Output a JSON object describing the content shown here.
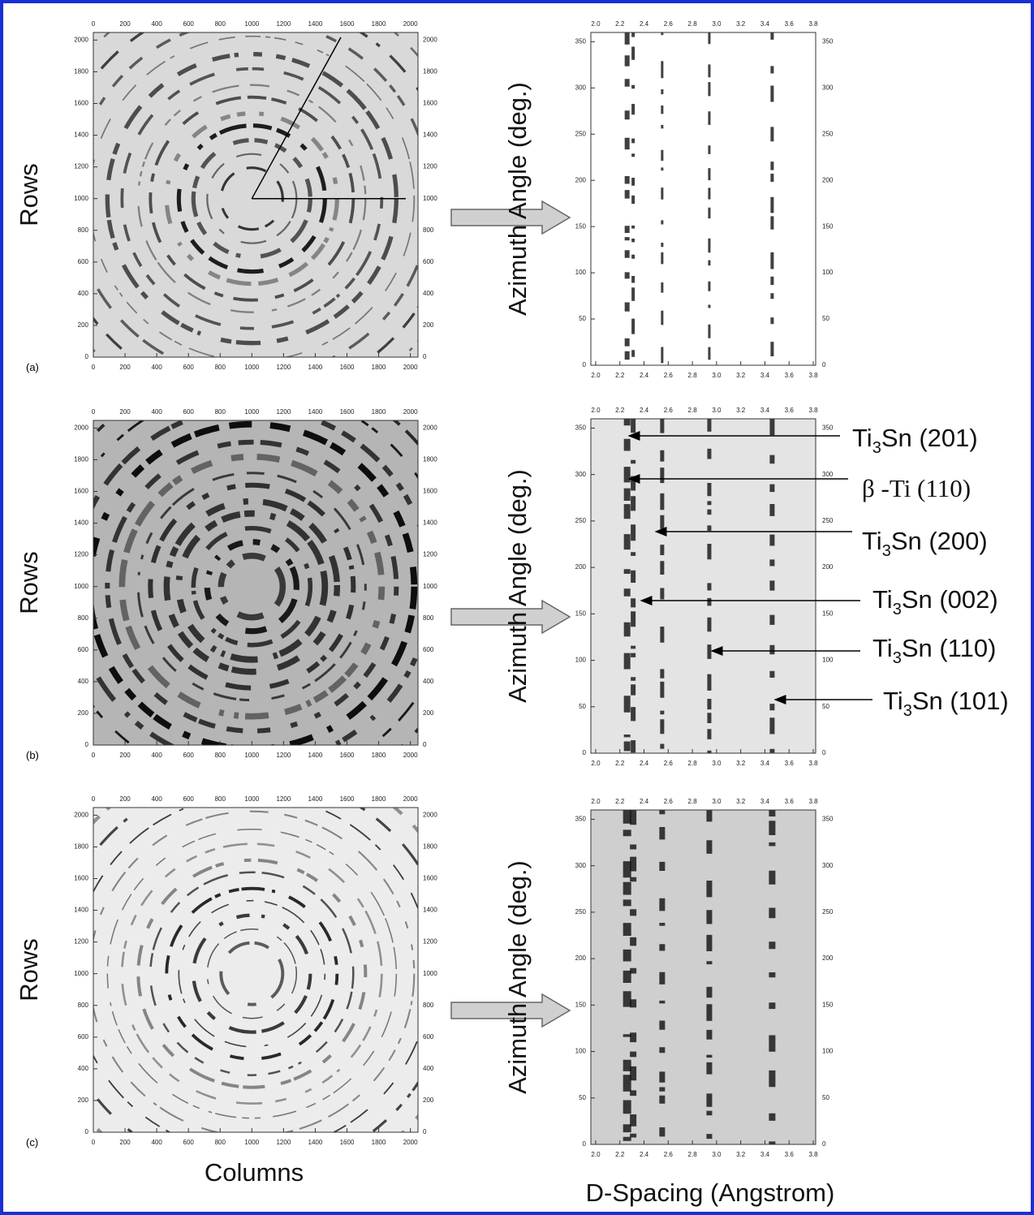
{
  "detector_axis": {
    "lim": [
      0,
      2048
    ],
    "ticks": [
      0,
      200,
      400,
      600,
      800,
      1000,
      1200,
      1400,
      1600,
      1800,
      2000
    ],
    "x_label": "Columns",
    "y_label": "Rows"
  },
  "azimuth_axis": {
    "xlim": [
      1.96,
      3.82
    ],
    "xticks": [
      {
        "value": 2,
        "label": "2.0"
      },
      {
        "value": 2.2,
        "label": "2.2"
      },
      {
        "value": 2.4,
        "label": "2.4"
      },
      {
        "value": 2.6,
        "label": "2.6"
      },
      {
        "value": 2.8,
        "label": "2.8"
      },
      {
        "value": 3,
        "label": "3.0"
      },
      {
        "value": 3.2,
        "label": "3.2"
      },
      {
        "value": 3.4,
        "label": "3.4"
      },
      {
        "value": 3.6,
        "label": "3.6"
      },
      {
        "value": 3.8,
        "label": "3.8"
      }
    ],
    "ylim": [
      0,
      360
    ],
    "yticks": [
      0,
      50,
      100,
      150,
      200,
      250,
      300,
      350
    ],
    "x_label": "D-Spacing (Angstrom)",
    "y_label": "Azimuth Angle (deg.)"
  },
  "panels": [
    {
      "label": "(a)"
    },
    {
      "label": "(b)"
    },
    {
      "label": "(c)"
    }
  ],
  "annotations": [
    {
      "base": "Ti",
      "sub": "3",
      "rest": "Sn (201)"
    },
    {
      "base": "β -Ti (110)"
    },
    {
      "base": "Ti",
      "sub": "3",
      "rest": "Sn (200)"
    },
    {
      "base": "Ti",
      "sub": "3",
      "rest": "Sn (002)"
    },
    {
      "base": "Ti",
      "sub": "3",
      "rest": "Sn (110)"
    },
    {
      "base": "Ti",
      "sub": "3",
      "rest": "Sn (101)"
    }
  ]
}
